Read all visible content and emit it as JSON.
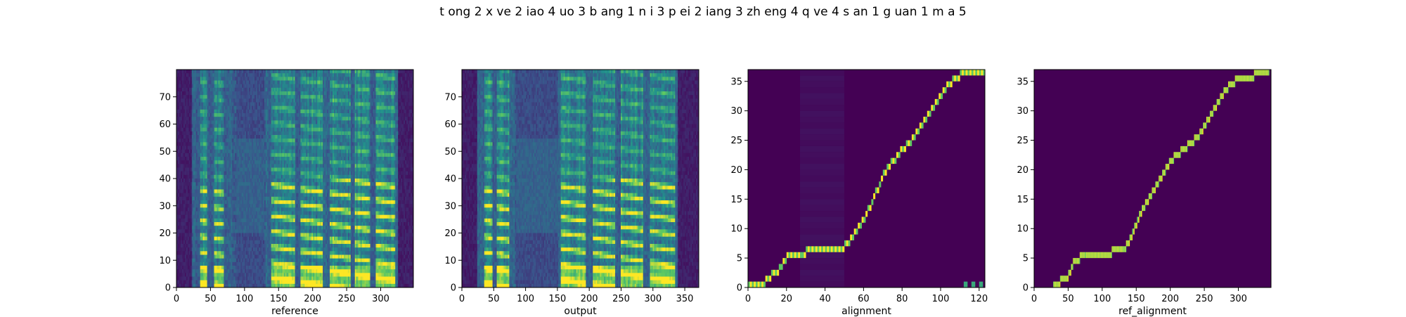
{
  "figure": {
    "suptitle": "t ong 2 x ve 2  iao 4  uo 3 b ang 1 n i 3 p ei 2  iang 3 zh eng 4 q ve 4 s an 1 g uan 1 m a 5"
  },
  "colors": {
    "viridis_dark": "#440154",
    "viridis_blue": "#3b528b",
    "viridis_teal": "#21918c",
    "viridis_green": "#5ec962",
    "viridis_yellow": "#fde725"
  },
  "chart_data": [
    {
      "type": "heatmap",
      "name": "reference",
      "xlabel": "reference",
      "ylabel": "",
      "xlim": [
        0,
        348
      ],
      "ylim": [
        0,
        80
      ],
      "xticks": [
        0,
        50,
        100,
        150,
        200,
        250,
        300
      ],
      "yticks": [
        0,
        10,
        20,
        30,
        40,
        50,
        60,
        70
      ],
      "colormap": "viridis",
      "content": "mel-spectrogram",
      "silence_ranges": [
        [
          0,
          22
        ],
        [
          326,
          348
        ]
      ],
      "noise_segment": [
        88,
        128
      ],
      "voiced_segments": [
        [
          35,
          45
        ],
        [
          55,
          70
        ],
        [
          140,
          175
        ],
        [
          182,
          215
        ],
        [
          225,
          255
        ],
        [
          262,
          285
        ],
        [
          292,
          322
        ]
      ]
    },
    {
      "type": "heatmap",
      "name": "output",
      "xlabel": "output",
      "ylabel": "",
      "xlim": [
        0,
        372
      ],
      "ylim": [
        0,
        80
      ],
      "xticks": [
        0,
        50,
        100,
        150,
        200,
        250,
        300,
        350
      ],
      "yticks": [
        0,
        10,
        20,
        30,
        40,
        50,
        60,
        70
      ],
      "colormap": "viridis",
      "content": "mel-spectrogram",
      "silence_ranges": [
        [
          0,
          25
        ],
        [
          340,
          372
        ]
      ],
      "noise_segment": [
        85,
        150
      ],
      "voiced_segments": [
        [
          35,
          48
        ],
        [
          55,
          75
        ],
        [
          155,
          195
        ],
        [
          205,
          240
        ],
        [
          250,
          285
        ],
        [
          295,
          335
        ]
      ]
    },
    {
      "type": "heatmap",
      "name": "alignment",
      "xlabel": "alignment",
      "ylabel": "",
      "xlim": [
        0,
        123
      ],
      "ylim": [
        0,
        37
      ],
      "xticks": [
        0,
        20,
        40,
        60,
        80,
        100,
        120
      ],
      "yticks": [
        0,
        5,
        10,
        15,
        20,
        25,
        30,
        35
      ],
      "colormap": "viridis",
      "path": [
        [
          0,
          0
        ],
        [
          8,
          0
        ],
        [
          10,
          1
        ],
        [
          14,
          2
        ],
        [
          17,
          3
        ],
        [
          19,
          4
        ],
        [
          21,
          5
        ],
        [
          28,
          5
        ],
        [
          32,
          6
        ],
        [
          48,
          6
        ],
        [
          52,
          7
        ],
        [
          56,
          9
        ],
        [
          60,
          11
        ],
        [
          64,
          14
        ],
        [
          68,
          17
        ],
        [
          72,
          20
        ],
        [
          76,
          21
        ],
        [
          80,
          23
        ],
        [
          84,
          24
        ],
        [
          88,
          26
        ],
        [
          92,
          28
        ],
        [
          96,
          30
        ],
        [
          100,
          32
        ],
        [
          104,
          34
        ],
        [
          108,
          35
        ],
        [
          112,
          36
        ],
        [
          123,
          36
        ]
      ],
      "faint_band_x": [
        27,
        50
      ],
      "extra_blocks": [
        [
          112,
          0
        ],
        [
          116,
          0
        ],
        [
          120,
          0
        ]
      ]
    },
    {
      "type": "heatmap",
      "name": "ref_alignment",
      "xlabel": "ref_alignment",
      "ylabel": "",
      "xlim": [
        0,
        348
      ],
      "ylim": [
        0,
        37
      ],
      "xticks": [
        0,
        50,
        100,
        150,
        200,
        250,
        300
      ],
      "yticks": [
        0,
        5,
        10,
        15,
        20,
        25,
        30,
        35
      ],
      "colormap": "viridis",
      "path": [
        [
          28,
          0
        ],
        [
          34,
          0
        ],
        [
          42,
          1
        ],
        [
          48,
          1
        ],
        [
          52,
          2
        ],
        [
          56,
          3
        ],
        [
          58,
          4
        ],
        [
          75,
          5
        ],
        [
          95,
          5
        ],
        [
          132,
          6
        ],
        [
          138,
          7
        ],
        [
          145,
          9
        ],
        [
          152,
          11
        ],
        [
          160,
          13
        ],
        [
          170,
          15
        ],
        [
          180,
          17
        ],
        [
          190,
          19
        ],
        [
          200,
          21
        ],
        [
          210,
          22
        ],
        [
          220,
          23
        ],
        [
          230,
          24
        ],
        [
          240,
          25
        ],
        [
          250,
          27
        ],
        [
          260,
          29
        ],
        [
          270,
          31
        ],
        [
          280,
          33
        ],
        [
          290,
          34
        ],
        [
          300,
          35
        ],
        [
          345,
          36
        ]
      ]
    }
  ]
}
